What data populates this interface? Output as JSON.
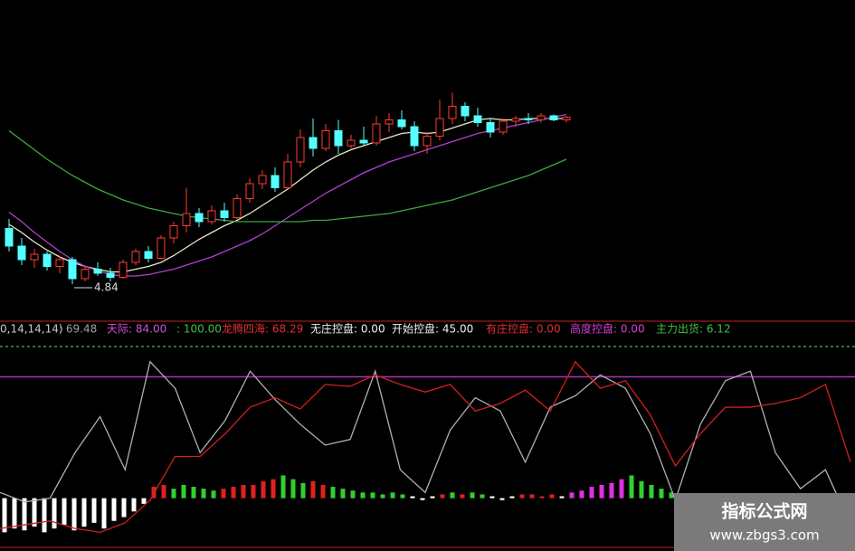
{
  "chart_data": [
    {
      "type": "candlestick",
      "open": [
        5.25,
        5.12,
        5.02,
        5.06,
        4.97,
        5.02,
        4.88,
        4.95,
        4.92,
        4.89,
        5.0,
        5.08,
        5.03,
        5.18,
        5.27,
        5.36,
        5.3,
        5.38,
        5.33,
        5.47,
        5.58,
        5.64,
        5.55,
        5.74,
        5.92,
        5.84,
        5.97,
        5.86,
        5.9,
        5.88,
        6.02,
        6.05,
        6.0,
        5.86,
        5.93,
        6.06,
        6.15,
        6.08,
        6.03,
        5.96,
        6.04,
        6.06,
        6.05,
        6.08,
        6.05
      ],
      "high": [
        5.32,
        5.18,
        5.1,
        5.08,
        5.05,
        5.04,
        4.98,
        5.0,
        4.96,
        5.02,
        5.1,
        5.12,
        5.2,
        5.3,
        5.55,
        5.4,
        5.42,
        5.44,
        5.5,
        5.62,
        5.68,
        5.7,
        5.8,
        5.98,
        6.06,
        6.02,
        6.05,
        5.94,
        6.0,
        6.08,
        6.1,
        6.12,
        6.04,
        5.96,
        6.2,
        6.25,
        6.18,
        6.14,
        6.06,
        6.06,
        6.08,
        6.1,
        6.1,
        6.09,
        6.08
      ],
      "low": [
        5.08,
        4.98,
        4.96,
        4.94,
        4.92,
        4.84,
        4.86,
        4.9,
        4.86,
        4.88,
        4.98,
        5.0,
        5.02,
        5.14,
        5.22,
        5.26,
        5.28,
        5.3,
        5.32,
        5.44,
        5.54,
        5.52,
        5.54,
        5.7,
        5.78,
        5.82,
        5.8,
        5.84,
        5.86,
        5.86,
        5.96,
        5.98,
        5.82,
        5.8,
        5.9,
        6.02,
        6.04,
        6.0,
        5.92,
        5.94,
        6.0,
        6.02,
        6.03,
        6.04,
        6.03
      ],
      "close": [
        5.12,
        5.02,
        5.06,
        4.97,
        5.02,
        4.88,
        4.95,
        4.92,
        4.89,
        5.0,
        5.08,
        5.03,
        5.18,
        5.27,
        5.36,
        5.3,
        5.38,
        5.33,
        5.47,
        5.58,
        5.64,
        5.55,
        5.74,
        5.92,
        5.84,
        5.97,
        5.86,
        5.9,
        5.88,
        6.02,
        6.05,
        6.0,
        5.86,
        5.93,
        6.06,
        6.15,
        6.08,
        6.03,
        5.96,
        6.04,
        6.06,
        6.05,
        6.08,
        6.05,
        6.07
      ],
      "up_color": "#ff3b30",
      "down_color": "#54ffff",
      "series": [
        {
          "color": "#e8e8c8",
          "values": [
            5.28,
            5.22,
            5.15,
            5.09,
            5.04,
            5.0,
            4.97,
            4.95,
            4.93,
            4.93,
            4.95,
            4.97,
            5.0,
            5.05,
            5.11,
            5.17,
            5.22,
            5.27,
            5.31,
            5.36,
            5.42,
            5.48,
            5.54,
            5.61,
            5.68,
            5.74,
            5.79,
            5.83,
            5.86,
            5.89,
            5.92,
            5.95,
            5.96,
            5.95,
            5.96,
            5.99,
            6.02,
            6.05,
            6.06,
            6.05,
            6.05,
            6.06,
            6.06,
            6.06,
            6.06
          ]
        },
        {
          "color": "#b040d0",
          "values": [
            5.37,
            5.3,
            5.22,
            5.15,
            5.08,
            5.02,
            4.97,
            4.94,
            4.91,
            4.9,
            4.9,
            4.91,
            4.93,
            4.95,
            4.98,
            5.01,
            5.04,
            5.08,
            5.12,
            5.16,
            5.21,
            5.27,
            5.33,
            5.39,
            5.45,
            5.51,
            5.56,
            5.61,
            5.66,
            5.7,
            5.74,
            5.77,
            5.8,
            5.83,
            5.86,
            5.89,
            5.92,
            5.95,
            5.97,
            5.99,
            6.01,
            6.03,
            6.05,
            6.07,
            6.09
          ]
        },
        {
          "color": "#3fa83f",
          "values": [
            5.97,
            5.9,
            5.83,
            5.76,
            5.7,
            5.64,
            5.59,
            5.54,
            5.5,
            5.46,
            5.43,
            5.4,
            5.38,
            5.36,
            5.34,
            5.33,
            5.32,
            5.31,
            5.3,
            5.3,
            5.3,
            5.3,
            5.3,
            5.3,
            5.31,
            5.31,
            5.32,
            5.33,
            5.34,
            5.35,
            5.36,
            5.38,
            5.4,
            5.42,
            5.44,
            5.46,
            5.49,
            5.52,
            5.55,
            5.58,
            5.61,
            5.64,
            5.68,
            5.72,
            5.76
          ]
        }
      ],
      "annotation": {
        "text": "4.84",
        "value": 4.84,
        "index": 5
      },
      "ylim": [
        4.6,
        6.8
      ]
    },
    {
      "type": "indicator",
      "legend": [
        {
          "text": "0,14,14,14)",
          "color": "#c8c8c8"
        },
        {
          "text": ": 69.48",
          "color": "#a0a0a0"
        },
        {
          "text": "天际: 84.00",
          "color": "#d050d0"
        },
        {
          "text": ": 100.00",
          "color": "#40c040"
        },
        {
          "text": "龙腾四海: 68.29",
          "color": "#e03030"
        },
        {
          "text": "无庄控盘: 0.00",
          "color": "#f0f0f0"
        },
        {
          "text": "开始控盘: 45.00",
          "color": "#f0f0f0"
        },
        {
          "text": "有庄控盘: 0.00",
          "color": "#e03030"
        },
        {
          "text": "高度控盘: 0.00",
          "color": "#d040d0"
        },
        {
          "text": "主力出货: 6.12",
          "color": "#40c040"
        }
      ],
      "ref_lines": [
        {
          "value": 100,
          "color": "#3a9a3a",
          "dashed": true
        },
        {
          "value": 84,
          "color": "#b030c0",
          "dashed": false
        }
      ],
      "series": [
        {
          "color": "#b0b0b0",
          "values": [
            23,
            18,
            20,
            44,
            63,
            35,
            92,
            78,
            44,
            61,
            87,
            72,
            59,
            48,
            51,
            87,
            35,
            23,
            56,
            73,
            66,
            39,
            68,
            74,
            85,
            78,
            54,
            19,
            59,
            82,
            87,
            44,
            25,
            35,
            6
          ]
        },
        {
          "color": "#d02020",
          "values": [
            4,
            6,
            8,
            4,
            2,
            7,
            19,
            42,
            42,
            54,
            68,
            73,
            67,
            80,
            79,
            85,
            80,
            76,
            80,
            66,
            70,
            77,
            66,
            92,
            78,
            82,
            64,
            37,
            54,
            68,
            68,
            70,
            73,
            80,
            39
          ]
        }
      ],
      "bars": {
        "base": 20,
        "values": [
          2,
          4,
          3,
          5,
          2,
          4,
          6,
          3,
          5,
          7,
          4,
          8,
          10,
          13,
          17,
          26,
          27,
          25,
          27,
          26,
          25,
          24,
          25,
          26,
          27,
          27,
          29,
          30,
          32,
          30,
          28,
          29,
          27,
          26,
          25,
          24,
          23,
          23,
          22,
          23,
          22,
          21,
          19,
          21,
          22,
          23,
          22,
          23,
          22,
          21,
          19,
          21,
          22,
          22,
          21,
          22,
          21,
          23,
          24,
          26,
          27,
          28,
          30,
          32,
          29,
          27,
          25,
          23
        ],
        "colors": [
          "#fff",
          "#fff",
          "#fff",
          "#fff",
          "#fff",
          "#fff",
          "#fff",
          "#fff",
          "#fff",
          "#fff",
          "#fff",
          "#fff",
          "#fff",
          "#fff",
          "#fff",
          "#e02020",
          "#e02020",
          "#30d030",
          "#30d030",
          "#30d030",
          "#30d030",
          "#30d030",
          "#e02020",
          "#e02020",
          "#e02020",
          "#e02020",
          "#e02020",
          "#e02020",
          "#30d030",
          "#30d030",
          "#30d030",
          "#e02020",
          "#e02020",
          "#30d030",
          "#30d030",
          "#30d030",
          "#30d030",
          "#30d030",
          "#30d030",
          "#30d030",
          "#30d030",
          "#fff",
          "#fff",
          "#fff",
          "#e02020",
          "#30d030",
          "#e02020",
          "#30d030",
          "#30d030",
          "#fff",
          "#fff",
          "#fff",
          "#e02020",
          "#e02020",
          "#e02020",
          "#e02020",
          "#fff",
          "#e030e0",
          "#e030e0",
          "#e030e0",
          "#e030e0",
          "#e030e0",
          "#e030e0",
          "#30d030",
          "#30d030",
          "#30d030",
          "#30d030",
          "#30d030"
        ]
      },
      "ylim": [
        -5,
        100
      ]
    }
  ],
  "watermark": {
    "title": "指标公式网",
    "url": "www.zbgs3.com"
  }
}
